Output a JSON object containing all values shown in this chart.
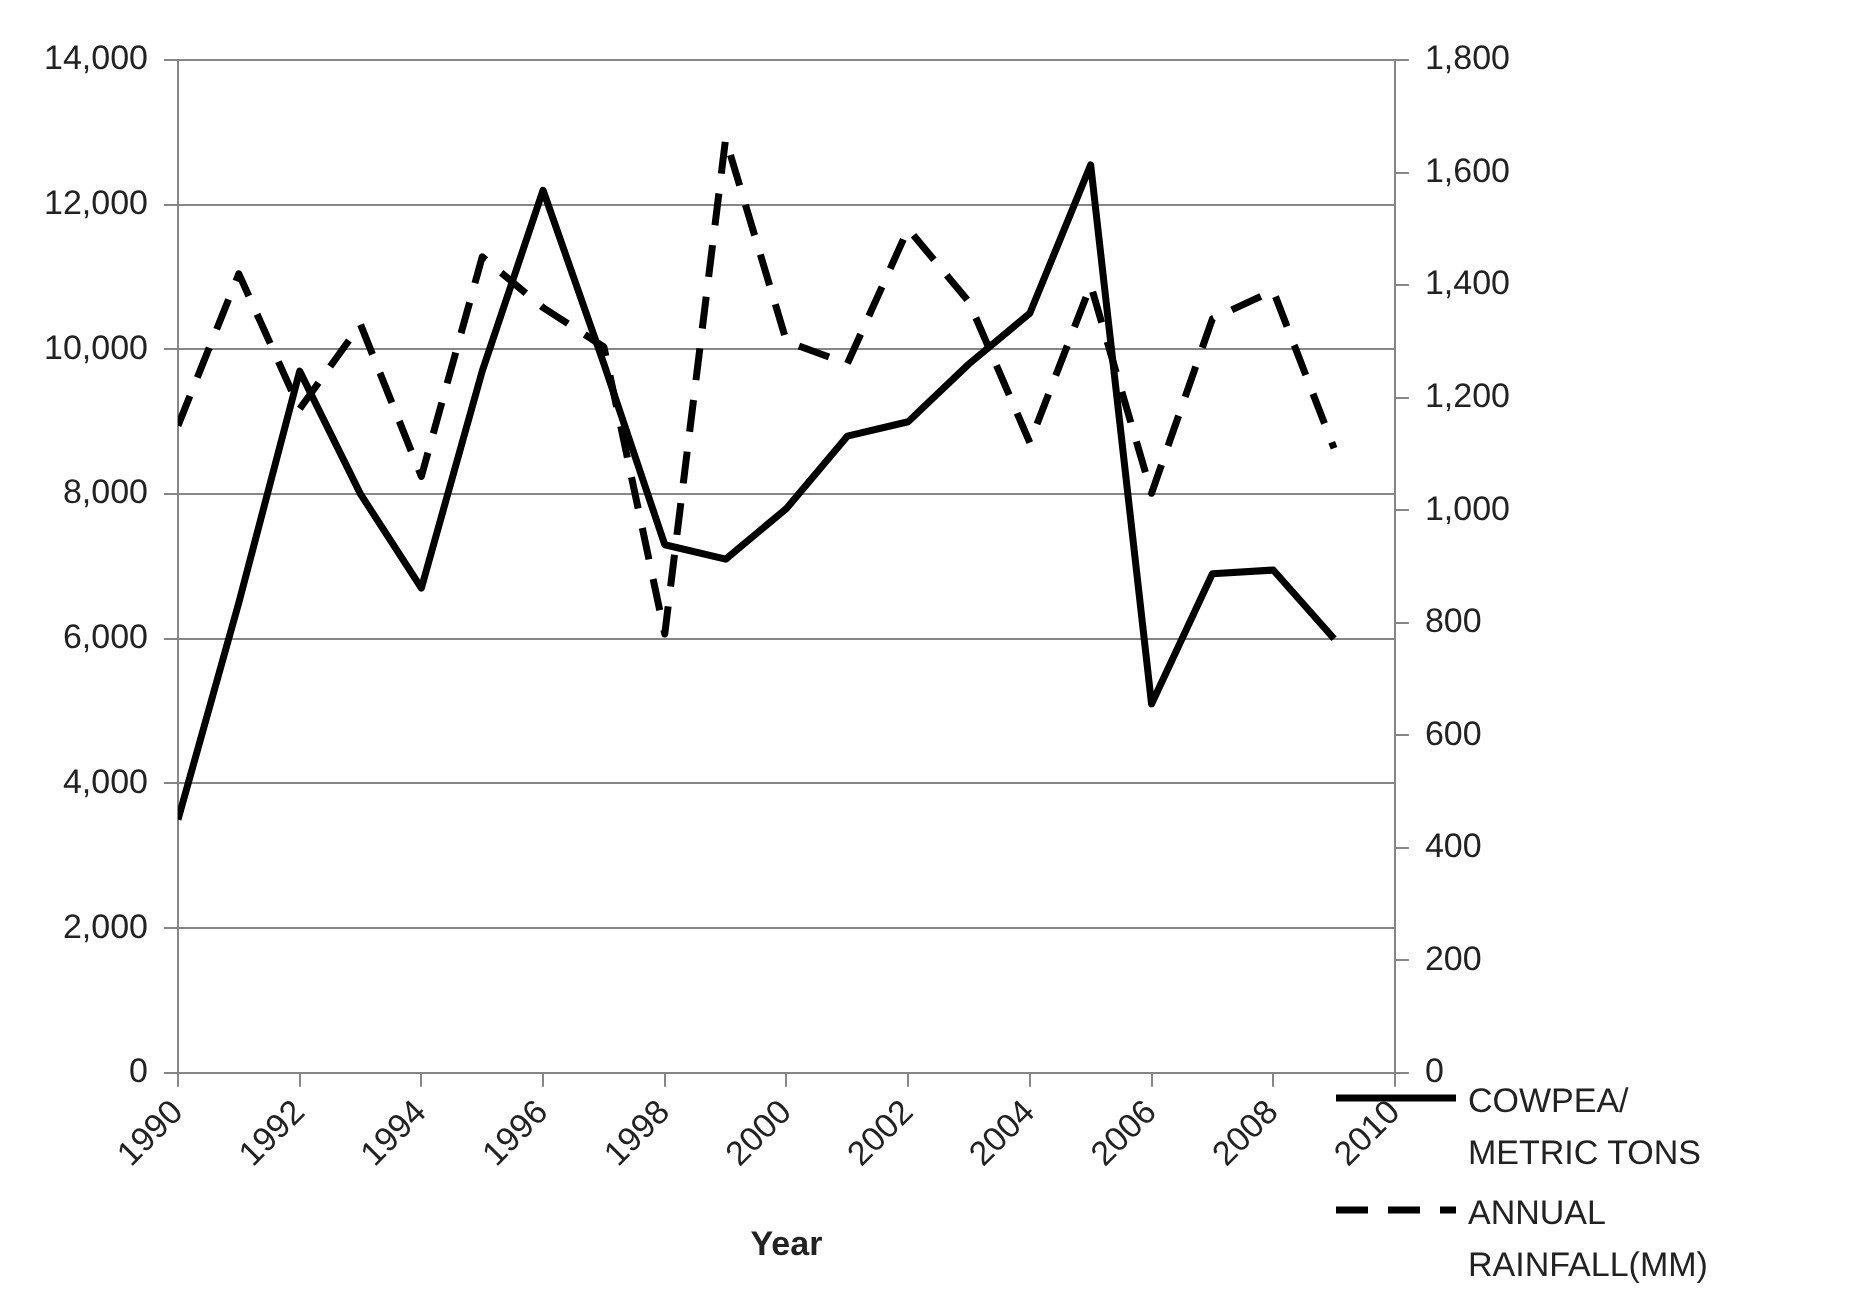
{
  "chart_data": {
    "type": "line",
    "xlabel": "Year",
    "x": [
      1990,
      1991,
      1992,
      1993,
      1994,
      1995,
      1996,
      1997,
      1998,
      1999,
      2000,
      2001,
      2002,
      2003,
      2004,
      2005,
      2006,
      2007,
      2008,
      2009
    ],
    "series": [
      {
        "name": "COWPEA/ METRIC TONS",
        "color": "#000000",
        "line_style": "solid",
        "values": [
          3500,
          6500,
          9700,
          8000,
          6700,
          9700,
          12200,
          9800,
          7300,
          7100,
          7800,
          8800,
          9000,
          9800,
          10500,
          12550,
          5100,
          6900,
          6950,
          6000
        ]
      },
      {
        "name": "ANNUAL RAINFALL(MM)",
        "color": "#000000",
        "line_style": "dashed",
        "axis": "y2",
        "values": [
          1150,
          1420,
          1180,
          1330,
          1060,
          1450,
          1360,
          1290,
          780,
          1660,
          1300,
          1260,
          1500,
          1370,
          1120,
          1400,
          1030,
          1340,
          1390,
          1110
        ]
      }
    ],
    "xlim": [
      1990,
      2010
    ],
    "xticks": [
      1990,
      1992,
      1994,
      1996,
      1998,
      2000,
      2002,
      2004,
      2006,
      2008,
      2010
    ],
    "ylim": [
      0,
      14000
    ],
    "yticks": [
      0,
      {
        "value": 2000,
        "label": "2,000"
      },
      {
        "value": 4000,
        "label": "4,000"
      },
      {
        "value": 6000,
        "label": "6,000"
      },
      {
        "value": 8000,
        "label": "8,000"
      },
      {
        "value": 10000,
        "label": "10,000"
      },
      {
        "value": 12000,
        "label": "12,000"
      },
      {
        "value": 14000,
        "label": "14,000"
      }
    ],
    "y2lim": [
      0,
      1800
    ],
    "y2ticks": [
      0,
      200,
      400,
      600,
      800,
      {
        "value": 1000,
        "label": "1,000"
      },
      {
        "value": 1200,
        "label": "1,200"
      },
      {
        "value": 1400,
        "label": "1,400"
      },
      {
        "value": 1600,
        "label": "1,600"
      },
      {
        "value": 1800,
        "label": "1,800"
      }
    ],
    "grid": "y",
    "legend": "bottom right",
    "marker": "none"
  }
}
